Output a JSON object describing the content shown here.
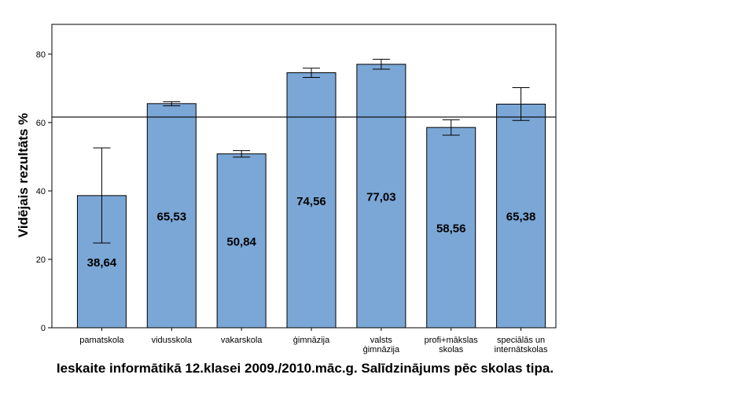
{
  "chart_data": {
    "type": "bar",
    "categories": [
      [
        "pamatskola"
      ],
      [
        "vidusskola"
      ],
      [
        "vakarskola"
      ],
      [
        "ģimnāzija"
      ],
      [
        "valsts",
        "ģimnāzija"
      ],
      [
        "profi+mākslas",
        "skolas"
      ],
      [
        "speciālās un",
        "internātskolas"
      ]
    ],
    "values": [
      38.64,
      65.53,
      50.84,
      74.56,
      77.03,
      58.56,
      65.38
    ],
    "value_labels": [
      "38,64",
      "65,53",
      "50,84",
      "74,56",
      "77,03",
      "58,56",
      "65,38"
    ],
    "error_bars": [
      [
        24.8,
        52.6
      ],
      [
        64.9,
        66.1
      ],
      [
        49.9,
        51.8
      ],
      [
        73.2,
        75.9
      ],
      [
        75.6,
        78.5
      ],
      [
        56.3,
        60.8
      ],
      [
        60.6,
        70.2
      ]
    ],
    "reference_line": 61.6,
    "ylabel": "Vidējais rezultāts %",
    "xlabel": "",
    "yticks": [
      "0",
      "20",
      "40",
      "60",
      "80"
    ],
    "ytick_values": [
      0,
      20,
      40,
      60,
      80
    ],
    "ylim": [
      0,
      88.7
    ],
    "bar_color": "#7ba7d6",
    "grid": false
  },
  "caption": "Ieskaite informātikā 12.klasei 2009./2010.māc.g. Salīdzinājums pēc skolas tipa."
}
